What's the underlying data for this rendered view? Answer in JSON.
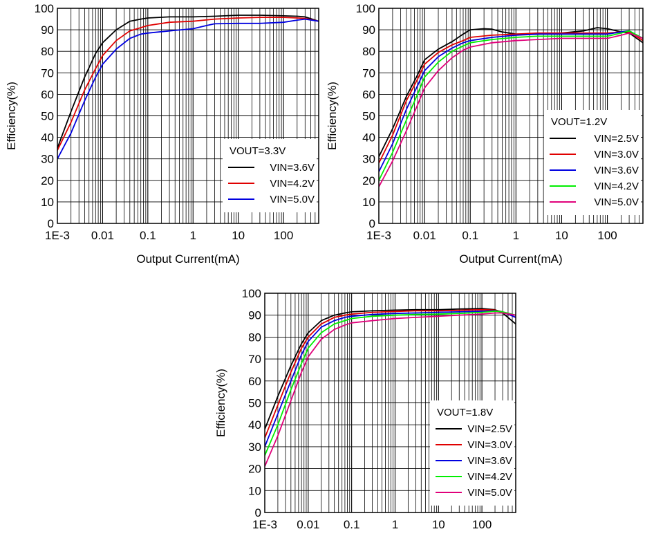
{
  "chart_data": [
    {
      "type": "line",
      "x_scale": "log",
      "xlim": [
        0.001,
        600
      ],
      "ylim": [
        0,
        100
      ],
      "xlabel": "Output Current(mA)",
      "ylabel": "Efficiency(%)",
      "x_tick_labels": [
        "1E-3",
        "0.01",
        "0.1",
        "1",
        "10",
        "100"
      ],
      "y_tick_labels": [
        "0",
        "10",
        "20",
        "30",
        "40",
        "50",
        "60",
        "70",
        "80",
        "90",
        "100"
      ],
      "legend_title": "VOUT=3.3V",
      "legend_position": "bottom-right",
      "grid": true,
      "series": [
        {
          "name": "VIN=3.6V",
          "color": "#000000",
          "x": [
            0.001,
            0.002,
            0.004,
            0.007,
            0.01,
            0.02,
            0.04,
            0.07,
            0.1,
            0.3,
            1,
            3,
            10,
            30,
            100,
            200,
            300,
            600
          ],
          "y": [
            35,
            52,
            68,
            79,
            84,
            90,
            94,
            95,
            95.5,
            96,
            96,
            96.3,
            96.8,
            96.8,
            96.5,
            96.3,
            96,
            94
          ]
        },
        {
          "name": "VIN=4.2V",
          "color": "#e00000",
          "x": [
            0.001,
            0.002,
            0.004,
            0.007,
            0.01,
            0.02,
            0.04,
            0.07,
            0.1,
            0.3,
            1,
            3,
            10,
            30,
            100,
            200,
            300,
            600
          ],
          "y": [
            34,
            47,
            62,
            72,
            78,
            85,
            89.5,
            91,
            92,
            93.5,
            94,
            95,
            95.5,
            95.8,
            95.8,
            95.5,
            95.3,
            94
          ]
        },
        {
          "name": "VIN=5.0V",
          "color": "#0000e0",
          "x": [
            0.001,
            0.002,
            0.004,
            0.007,
            0.01,
            0.02,
            0.04,
            0.07,
            0.1,
            0.3,
            1,
            2,
            3,
            10,
            30,
            100,
            200,
            300,
            600
          ],
          "y": [
            30,
            42,
            57,
            68,
            74,
            81,
            86,
            88,
            88.5,
            89.5,
            90.5,
            92,
            92.8,
            93,
            93,
            93.5,
            94.5,
            95,
            94
          ]
        }
      ]
    },
    {
      "type": "line",
      "x_scale": "log",
      "xlim": [
        0.001,
        600
      ],
      "ylim": [
        0,
        100
      ],
      "xlabel": "Output Current(mA)",
      "ylabel": "Efficiency(%)",
      "x_tick_labels": [
        "1E-3",
        "0.01",
        "0.1",
        "1",
        "10",
        "100"
      ],
      "y_tick_labels": [
        "0",
        "10",
        "20",
        "30",
        "40",
        "50",
        "60",
        "70",
        "80",
        "90",
        "100"
      ],
      "legend_title": "VOUT=1.2V",
      "legend_position": "bottom-right",
      "grid": true,
      "series": [
        {
          "name": "VIN=2.5V",
          "color": "#000000",
          "x": [
            0.001,
            0.002,
            0.004,
            0.007,
            0.01,
            0.02,
            0.04,
            0.07,
            0.1,
            0.2,
            0.3,
            0.5,
            1,
            3,
            10,
            30,
            60,
            100,
            200,
            300,
            600
          ],
          "y": [
            31,
            44,
            59,
            69,
            76,
            81,
            84.5,
            88,
            90,
            90.5,
            90.3,
            89,
            88,
            88,
            88.5,
            89.5,
            91,
            90.5,
            89,
            88.5,
            84
          ]
        },
        {
          "name": "VIN=3.0V",
          "color": "#e00000",
          "x": [
            0.001,
            0.002,
            0.004,
            0.007,
            0.01,
            0.02,
            0.04,
            0.07,
            0.1,
            0.3,
            1,
            3,
            10,
            30,
            100,
            200,
            300,
            600
          ],
          "y": [
            28,
            41,
            57,
            67,
            74,
            79.5,
            83,
            85,
            86.5,
            87.5,
            88,
            88.5,
            88.5,
            88.5,
            88.5,
            89,
            89,
            85
          ]
        },
        {
          "name": "VIN=3.6V",
          "color": "#0000e0",
          "x": [
            0.001,
            0.002,
            0.004,
            0.007,
            0.01,
            0.02,
            0.04,
            0.07,
            0.1,
            0.3,
            1,
            3,
            10,
            30,
            100,
            200,
            300,
            600
          ],
          "y": [
            24,
            37,
            53,
            64,
            71,
            77.5,
            81.5,
            84,
            85,
            86.5,
            87.5,
            88,
            88,
            88,
            88,
            89,
            89.5,
            86
          ]
        },
        {
          "name": "VIN=4.2V",
          "color": "#00ee00",
          "x": [
            0.001,
            0.002,
            0.004,
            0.007,
            0.01,
            0.02,
            0.04,
            0.07,
            0.1,
            0.3,
            1,
            3,
            10,
            30,
            100,
            200,
            300,
            600
          ],
          "y": [
            20,
            33,
            48,
            60,
            68,
            75,
            80,
            82.5,
            84,
            85.5,
            86.5,
            87,
            87,
            87,
            87,
            88.5,
            89.5,
            86
          ]
        },
        {
          "name": "VIN=5.0V",
          "color": "#e0007a",
          "x": [
            0.001,
            0.002,
            0.004,
            0.007,
            0.01,
            0.02,
            0.04,
            0.07,
            0.1,
            0.3,
            1,
            3,
            10,
            30,
            100,
            200,
            300,
            600
          ],
          "y": [
            17,
            29,
            43,
            55,
            63,
            71,
            77,
            80.5,
            82,
            84,
            85,
            85.5,
            86,
            86,
            86,
            87.5,
            88.5,
            86
          ]
        }
      ]
    },
    {
      "type": "line",
      "x_scale": "log",
      "xlim": [
        0.001,
        600
      ],
      "ylim": [
        0,
        100
      ],
      "xlabel": "",
      "ylabel": "Efficiency(%)",
      "x_tick_labels": [
        "1E-3",
        "0.01",
        "0.1",
        "1",
        "10",
        "100"
      ],
      "y_tick_labels": [
        "0",
        "10",
        "20",
        "30",
        "40",
        "50",
        "60",
        "70",
        "80",
        "90",
        "100"
      ],
      "legend_title": "VOUT=1.8V",
      "legend_position": "bottom-right",
      "grid": true,
      "series": [
        {
          "name": "VIN=2.5V",
          "color": "#000000",
          "x": [
            0.001,
            0.002,
            0.004,
            0.007,
            0.01,
            0.02,
            0.04,
            0.07,
            0.1,
            0.3,
            1,
            3,
            10,
            30,
            100,
            200,
            300,
            600
          ],
          "y": [
            38,
            53,
            67,
            77,
            82,
            87.5,
            90,
            91,
            91.5,
            92,
            92.3,
            92.5,
            92.5,
            92.8,
            93,
            92.5,
            91,
            86
          ]
        },
        {
          "name": "VIN=3.0V",
          "color": "#e00000",
          "x": [
            0.001,
            0.002,
            0.004,
            0.007,
            0.01,
            0.02,
            0.04,
            0.07,
            0.1,
            0.3,
            1,
            3,
            10,
            30,
            100,
            200,
            300,
            600
          ],
          "y": [
            34,
            49,
            64,
            75,
            80,
            86,
            89,
            90,
            90.5,
            91.3,
            91.7,
            92,
            92,
            92.2,
            92.5,
            92.3,
            91.5,
            89
          ]
        },
        {
          "name": "VIN=3.6V",
          "color": "#0000e0",
          "x": [
            0.001,
            0.002,
            0.004,
            0.007,
            0.01,
            0.02,
            0.04,
            0.07,
            0.1,
            0.3,
            1,
            3,
            10,
            30,
            100,
            200,
            300,
            600
          ],
          "y": [
            30,
            45,
            60,
            72,
            78,
            84.5,
            87.5,
            89,
            89.5,
            90.3,
            90.8,
            91,
            91.3,
            91.5,
            91.8,
            92,
            91.5,
            89
          ]
        },
        {
          "name": "VIN=4.2V",
          "color": "#00ee00",
          "x": [
            0.001,
            0.002,
            0.004,
            0.007,
            0.01,
            0.02,
            0.04,
            0.07,
            0.1,
            0.3,
            1,
            3,
            10,
            30,
            100,
            200,
            300,
            600
          ],
          "y": [
            26,
            40,
            56,
            68,
            75,
            82,
            86,
            87.5,
            88.5,
            89.5,
            90,
            90.3,
            90.5,
            90.8,
            91.3,
            91.8,
            91.5,
            90
          ]
        },
        {
          "name": "VIN=5.0V",
          "color": "#e0007a",
          "x": [
            0.001,
            0.002,
            0.004,
            0.007,
            0.01,
            0.02,
            0.04,
            0.07,
            0.1,
            0.3,
            1,
            3,
            10,
            30,
            100,
            200,
            300,
            600
          ],
          "y": [
            21,
            35,
            51,
            64,
            71,
            79,
            83.5,
            85.5,
            86.5,
            87.5,
            88.5,
            89,
            89.5,
            90,
            90.5,
            91,
            91,
            90
          ]
        }
      ]
    }
  ]
}
